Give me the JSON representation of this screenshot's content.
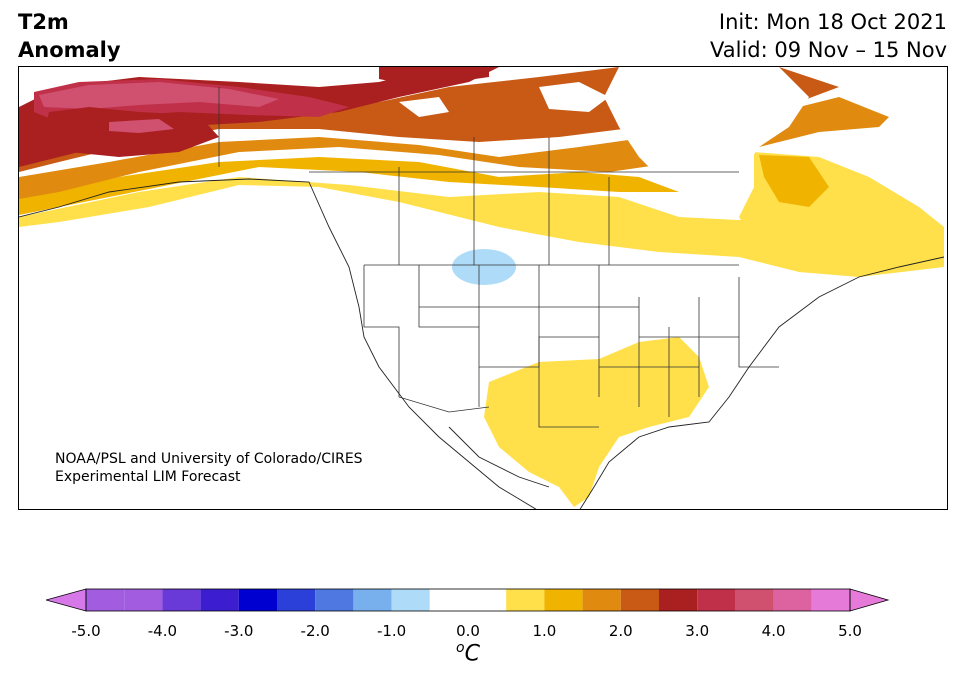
{
  "header": {
    "title_line1": "T2m",
    "title_line2": "Anomaly",
    "init_label": "Init: Mon 18 Oct 2021",
    "valid_label": "Valid: 09 Nov – 15 Nov"
  },
  "credit": {
    "line1": "NOAA/PSL and University of Colorado/CIRES",
    "line2": "Experimental LIM Forecast"
  },
  "colorbar": {
    "unit_sup": "o",
    "unit": "C",
    "ticks": [
      "-5.0",
      "-4.0",
      "-3.0",
      "-2.0",
      "-1.0",
      "0.0",
      "1.0",
      "2.0",
      "3.0",
      "4.0",
      "5.0"
    ],
    "extend_low_color": "#d678e8",
    "extend_high_color": "#e67ad8",
    "bins": [
      {
        "lo": -5.0,
        "hi": -4.5,
        "color": "#a25ce0"
      },
      {
        "lo": -4.5,
        "hi": -4.0,
        "color": "#a25ce0"
      },
      {
        "lo": -4.0,
        "hi": -3.5,
        "color": "#6a3ad8"
      },
      {
        "lo": -3.5,
        "hi": -3.0,
        "color": "#3c1ed0"
      },
      {
        "lo": -3.0,
        "hi": -2.5,
        "color": "#0000d0"
      },
      {
        "lo": -2.5,
        "hi": -2.0,
        "color": "#2a40d8"
      },
      {
        "lo": -2.0,
        "hi": -1.5,
        "color": "#4f78e0"
      },
      {
        "lo": -1.5,
        "hi": -1.0,
        "color": "#78b0ee"
      },
      {
        "lo": -1.0,
        "hi": -0.5,
        "color": "#aedcf8"
      },
      {
        "lo": -0.5,
        "hi": 0.5,
        "color": "#ffffff"
      },
      {
        "lo": 0.5,
        "hi": 1.0,
        "color": "#ffe04a"
      },
      {
        "lo": 1.0,
        "hi": 1.5,
        "color": "#f0b400"
      },
      {
        "lo": 1.5,
        "hi": 2.0,
        "color": "#e08a10"
      },
      {
        "lo": 2.0,
        "hi": 2.5,
        "color": "#c85a16"
      },
      {
        "lo": 2.5,
        "hi": 3.0,
        "color": "#aa2020"
      },
      {
        "lo": 3.0,
        "hi": 3.5,
        "color": "#c03048"
      },
      {
        "lo": 3.5,
        "hi": 4.0,
        "color": "#d05070"
      },
      {
        "lo": 4.0,
        "hi": 4.5,
        "color": "#dc62a0"
      },
      {
        "lo": 4.5,
        "hi": 5.0,
        "color": "#e67ad8"
      }
    ]
  }
}
